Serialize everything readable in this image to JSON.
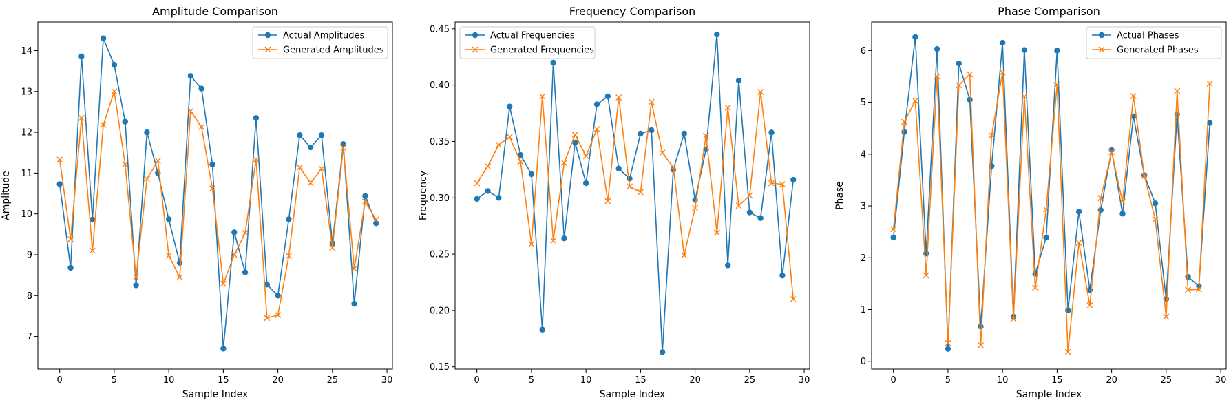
{
  "chart_data": [
    {
      "type": "line",
      "title": "Amplitude Comparison",
      "xlabel": "Sample Index",
      "ylabel": "Amplitude",
      "xlim": [
        -2,
        30.5
      ],
      "ylim": [
        6.2,
        14.7
      ],
      "xticks": [
        0,
        5,
        10,
        15,
        20,
        25,
        30
      ],
      "yticks": [
        7,
        8,
        9,
        10,
        11,
        12,
        13,
        14
      ],
      "legend": "top-right",
      "grid": false,
      "x": [
        0,
        1,
        2,
        3,
        4,
        5,
        6,
        7,
        8,
        9,
        10,
        11,
        12,
        13,
        14,
        15,
        16,
        17,
        18,
        19,
        20,
        21,
        22,
        23,
        24,
        25,
        26,
        27,
        28,
        29
      ],
      "series": [
        {
          "name": "Actual Amplitudes",
          "color": "#1f77b4",
          "marker": "circle",
          "values": [
            10.73,
            8.68,
            13.86,
            9.86,
            14.3,
            13.65,
            12.26,
            8.25,
            12.0,
            11.0,
            9.87,
            8.8,
            13.38,
            13.07,
            11.21,
            6.7,
            9.55,
            8.57,
            12.35,
            8.27,
            8.0,
            9.87,
            11.93,
            11.63,
            11.93,
            9.28,
            11.71,
            7.8,
            10.44,
            9.77
          ]
        },
        {
          "name": "Generated Amplitudes",
          "color": "#ff7f0e",
          "marker": "x",
          "values": [
            11.33,
            9.38,
            12.35,
            9.1,
            12.18,
            13.0,
            11.21,
            8.45,
            10.86,
            11.3,
            8.98,
            8.45,
            12.52,
            12.13,
            10.62,
            8.29,
            9.0,
            9.53,
            11.33,
            7.45,
            7.52,
            8.97,
            11.14,
            10.76,
            11.11,
            9.17,
            11.62,
            8.66,
            10.3,
            9.86
          ]
        }
      ]
    },
    {
      "type": "line",
      "title": "Frequency Comparison",
      "xlabel": "Sample Index",
      "ylabel": "Frequency",
      "xlim": [
        -2,
        30.5
      ],
      "ylim": [
        0.148,
        0.456
      ],
      "xticks": [
        0,
        5,
        10,
        15,
        20,
        25,
        30
      ],
      "yticks": [
        0.15,
        0.2,
        0.25,
        0.3,
        0.35,
        0.4,
        0.45
      ],
      "legend": "top-left",
      "grid": false,
      "x": [
        0,
        1,
        2,
        3,
        4,
        5,
        6,
        7,
        8,
        9,
        10,
        11,
        12,
        13,
        14,
        15,
        16,
        17,
        18,
        19,
        20,
        21,
        22,
        23,
        24,
        25,
        26,
        27,
        28,
        29
      ],
      "series": [
        {
          "name": "Actual Frequencies",
          "color": "#1f77b4",
          "marker": "circle",
          "values": [
            0.299,
            0.306,
            0.3,
            0.381,
            0.338,
            0.321,
            0.183,
            0.42,
            0.264,
            0.349,
            0.313,
            0.383,
            0.39,
            0.326,
            0.317,
            0.357,
            0.36,
            0.163,
            0.325,
            0.357,
            0.298,
            0.343,
            0.445,
            0.24,
            0.404,
            0.287,
            0.282,
            0.358,
            0.231,
            0.316
          ]
        },
        {
          "name": "Generated Frequencies",
          "color": "#ff7f0e",
          "marker": "x",
          "values": [
            0.313,
            0.328,
            0.347,
            0.354,
            0.332,
            0.259,
            0.39,
            0.262,
            0.331,
            0.356,
            0.337,
            0.361,
            0.297,
            0.389,
            0.31,
            0.305,
            0.385,
            0.34,
            0.327,
            0.249,
            0.291,
            0.355,
            0.269,
            0.38,
            0.293,
            0.302,
            0.394,
            0.313,
            0.312,
            0.21
          ]
        }
      ]
    },
    {
      "type": "line",
      "title": "Phase Comparison",
      "xlabel": "Sample Index",
      "ylabel": "Phase",
      "xlim": [
        -2,
        30.5
      ],
      "ylim": [
        -0.15,
        6.55
      ],
      "xticks": [
        0,
        5,
        10,
        15,
        20,
        25,
        30
      ],
      "yticks": [
        0,
        1,
        2,
        3,
        4,
        5,
        6
      ],
      "legend": "top-right",
      "grid": false,
      "x": [
        0,
        1,
        2,
        3,
        4,
        5,
        6,
        7,
        8,
        9,
        10,
        11,
        12,
        13,
        14,
        15,
        16,
        17,
        18,
        19,
        20,
        21,
        22,
        23,
        24,
        25,
        26,
        27,
        28,
        29
      ],
      "series": [
        {
          "name": "Actual Phases",
          "color": "#1f77b4",
          "marker": "circle",
          "values": [
            2.39,
            4.43,
            6.26,
            2.08,
            6.03,
            0.24,
            5.75,
            5.05,
            0.67,
            3.77,
            6.15,
            0.86,
            6.01,
            1.69,
            2.39,
            6.0,
            0.98,
            2.89,
            1.38,
            2.92,
            4.08,
            2.85,
            4.73,
            3.59,
            3.05,
            1.2,
            4.77,
            1.63,
            1.45,
            4.6
          ]
        },
        {
          "name": "Generated Phases",
          "color": "#ff7f0e",
          "marker": "x",
          "values": [
            2.55,
            4.62,
            5.03,
            1.66,
            5.5,
            0.35,
            5.33,
            5.54,
            0.31,
            4.36,
            5.58,
            0.82,
            5.11,
            1.42,
            2.93,
            5.34,
            0.18,
            2.29,
            1.08,
            3.15,
            4.04,
            3.08,
            5.12,
            3.58,
            2.74,
            0.86,
            5.22,
            1.38,
            1.39,
            5.36
          ]
        }
      ]
    }
  ]
}
